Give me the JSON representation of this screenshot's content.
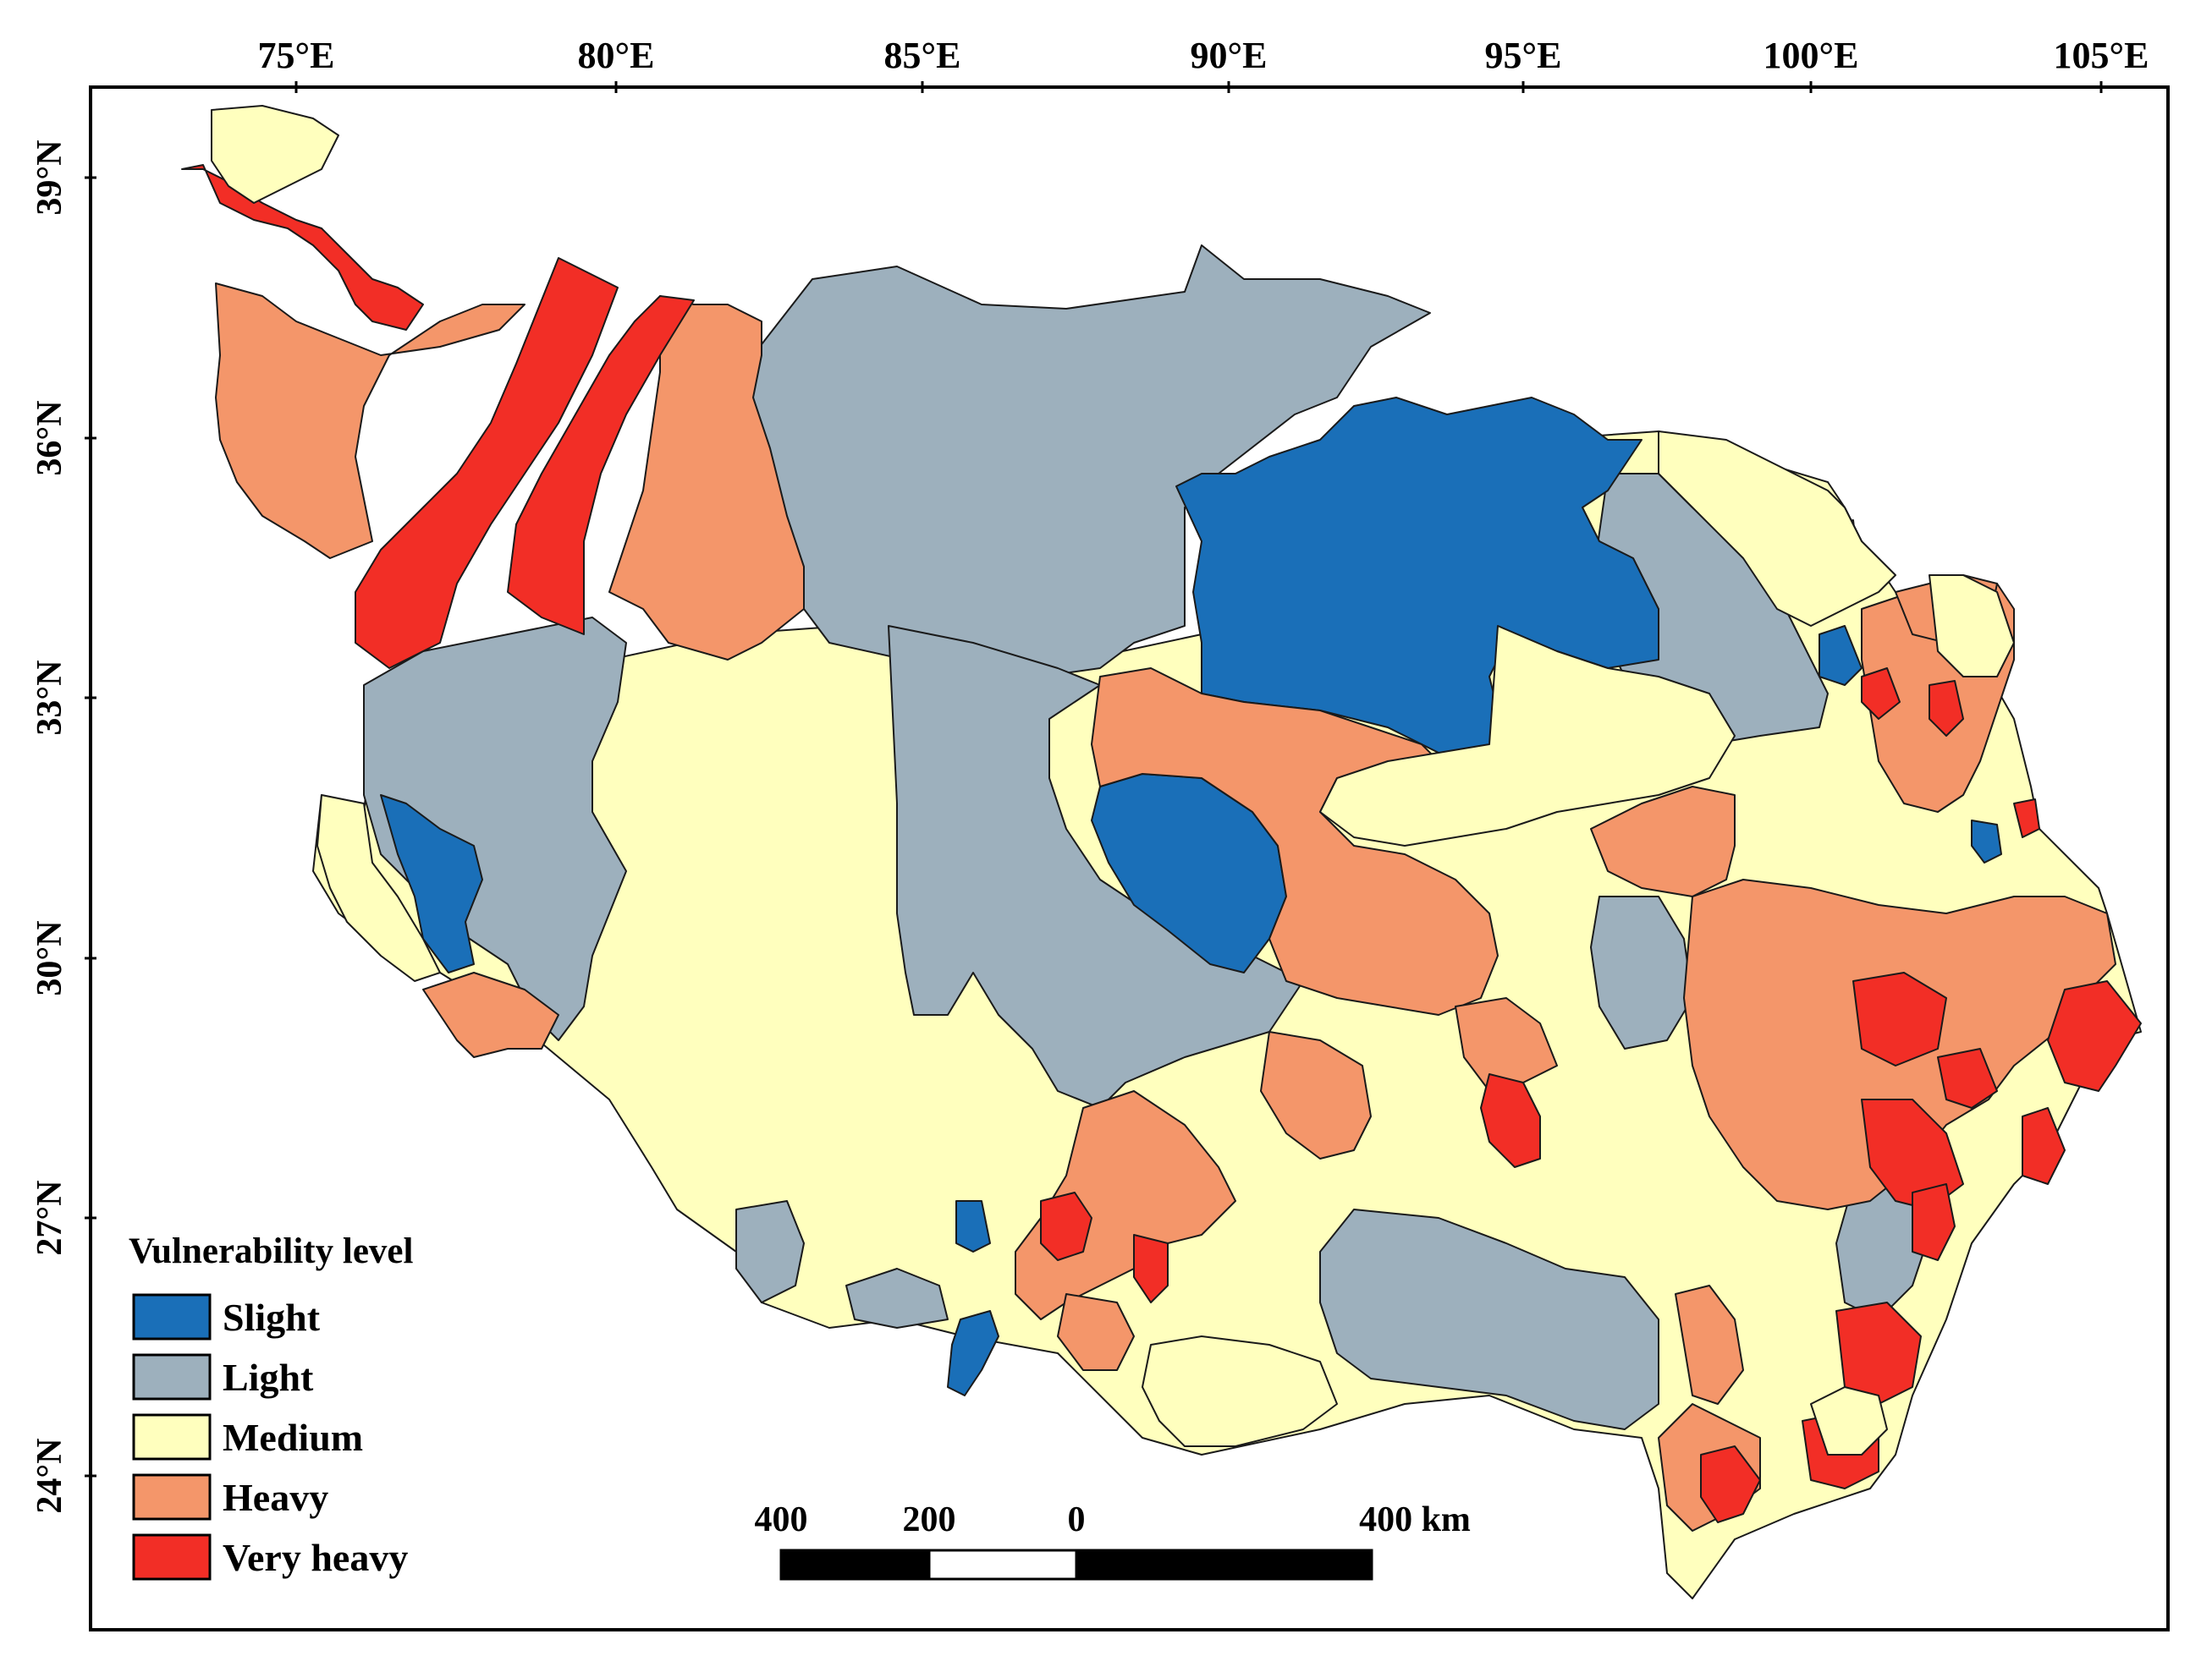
{
  "map": {
    "top_ticks": [
      "75°E",
      "80°E",
      "85°E",
      "90°E",
      "95°E",
      "100°E",
      "105°E"
    ],
    "left_ticks": [
      "39°N",
      "36°N",
      "33°N",
      "30°N",
      "27°N",
      "24°N"
    ]
  },
  "legend": {
    "title": "Vulnerability level",
    "items": [
      {
        "label": "Slight",
        "color": "#1a6fb8"
      },
      {
        "label": "Light",
        "color": "#9db0bd"
      },
      {
        "label": "Medium",
        "color": "#ffffbe"
      },
      {
        "label": "Heavy",
        "color": "#f4966a"
      },
      {
        "label": "Very heavy",
        "color": "#f22e26"
      }
    ]
  },
  "scalebar": {
    "labels": [
      "400",
      "200",
      "0",
      "400 km"
    ]
  }
}
